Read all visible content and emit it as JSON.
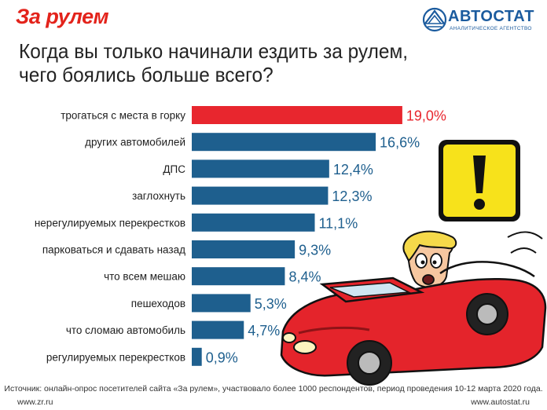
{
  "header": {
    "logo_left": "За рулем",
    "logo_right_main": "АВТОСТАТ",
    "logo_right_sub": "АНАЛИТИЧЕСКОЕ АГЕНТСТВО",
    "brand_red": "#e3231b",
    "brand_blue": "#1b5b9e"
  },
  "chart_data": {
    "type": "bar",
    "orientation": "horizontal",
    "title_lines": [
      "Когда вы только начинали ездить за рулем,",
      "чего боялись больше всего?"
    ],
    "categories": [
      "трогаться с места в горку",
      "других автомобилей",
      "ДПС",
      "заглохнуть",
      "нерегулируемых перекрестков",
      "парковаться и сдавать назад",
      "что всем мешаю",
      "пешеходов",
      "что сломаю автомобиль",
      "регулируемых перекрестков"
    ],
    "values": [
      19.0,
      16.6,
      12.4,
      12.3,
      11.1,
      9.3,
      8.4,
      5.3,
      4.7,
      0.9
    ],
    "value_labels": [
      "19,0%",
      "16,6%",
      "12,4%",
      "12,3%",
      "11,1%",
      "9,3%",
      "8,4%",
      "5,3%",
      "4,7%",
      "0,9%"
    ],
    "bar_colors": [
      "#e8262e",
      "#1e5f8e",
      "#1e5f8e",
      "#1e5f8e",
      "#1e5f8e",
      "#1e5f8e",
      "#1e5f8e",
      "#1e5f8e",
      "#1e5f8e",
      "#1e5f8e"
    ],
    "label_colors": [
      "#e8262e",
      "#1e5f8e",
      "#1e5f8e",
      "#1e5f8e",
      "#1e5f8e",
      "#1e5f8e",
      "#1e5f8e",
      "#1e5f8e",
      "#1e5f8e",
      "#1e5f8e"
    ],
    "grid": false,
    "legend": "none"
  },
  "illustrations": {
    "warning_sign": "exclamation-warning-sign",
    "warning_fill": "#f7e21b",
    "car": "red-convertible-with-scared-driver"
  },
  "footer": {
    "source": "Источник: онлайн-опрос посетителей сайта «За рулем», участвовало более 1000 респондентов, период проведения 10-12 марта 2020 года.",
    "url_left": "www.zr.ru",
    "url_right": "www.autostat.ru"
  }
}
